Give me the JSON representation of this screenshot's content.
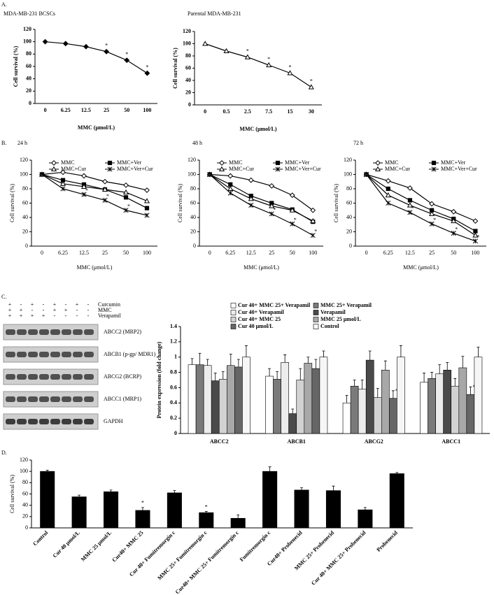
{
  "panel_labels": [
    "A.",
    "B.",
    "C.",
    "D."
  ],
  "blot": {
    "treatments": [
      {
        "name": "Curcumin",
        "signs": [
          "+",
          "-",
          "+",
          "-",
          "+",
          "-",
          "+",
          "-"
        ]
      },
      {
        "name": "MMC",
        "signs": [
          "+",
          "+",
          "-",
          "-",
          "+",
          "+",
          "-",
          "-"
        ]
      },
      {
        "name": "Verapamil",
        "signs": [
          "+",
          "+",
          "+",
          "+",
          "-",
          "-",
          "-",
          "-"
        ]
      }
    ],
    "bands": [
      "ABCC2 (MRP2)",
      "ABCB1 (p-gp/ MDR1)",
      "ABCG2 (BCRP)",
      "ABCC1 (MRP1)",
      "GAPDH"
    ]
  },
  "chart_data": [
    {
      "type": "line",
      "title": "MDA-MB-231 BCSCs",
      "xlabel": "MMC (μmol/L)",
      "ylabel": "Cell survival (%)",
      "categories": [
        "0",
        "6.25",
        "12.5",
        "25",
        "50",
        "100"
      ],
      "series": [
        {
          "color": "#000000",
          "marker": "diamond",
          "values": [
            100,
            97,
            92,
            84,
            70,
            49
          ],
          "annotations": [
            null,
            null,
            null,
            "*",
            "*",
            "*"
          ]
        }
      ],
      "ylim": [
        0,
        120
      ],
      "yticks": [
        0,
        20,
        40,
        60,
        80,
        100,
        120
      ]
    },
    {
      "type": "line",
      "title": "Parental MDA-MB-231",
      "xlabel": "MMC (μmol/L)",
      "ylabel": "Cell survival (%)",
      "categories": [
        "0",
        "0.5",
        "2.5",
        "7.5",
        "15",
        "30"
      ],
      "series": [
        {
          "color": "#000000",
          "marker": "open-triangle",
          "values": [
            100,
            88,
            78,
            65,
            52,
            29
          ],
          "annotations": [
            null,
            null,
            "*",
            "*",
            "*",
            "*"
          ]
        }
      ],
      "ylim": [
        0,
        120
      ],
      "yticks": [
        0,
        20,
        40,
        60,
        80,
        100,
        120
      ]
    },
    {
      "type": "line",
      "title": "24 h",
      "xlabel": "MMC (μmol/L)",
      "ylabel": "Cell survival (%)",
      "legend": "top",
      "categories": [
        "0",
        "6.25",
        "12.5",
        "25",
        "50",
        "100"
      ],
      "series": [
        {
          "name": "MMC",
          "color": "#000000",
          "marker": "open-diamond",
          "values": [
            100,
            103,
            98,
            90,
            85,
            78
          ]
        },
        {
          "name": "MMC+Ver",
          "color": "#000000",
          "marker": "square",
          "values": [
            100,
            92,
            86,
            79,
            68,
            53
          ]
        },
        {
          "name": "MMC+Cur",
          "color": "#000000",
          "marker": "open-triangle",
          "values": [
            100,
            87,
            83,
            79,
            75,
            63
          ]
        },
        {
          "name": "MMC+Ver+Cur",
          "color": "#000000",
          "marker": "cross",
          "values": [
            100,
            80,
            72,
            64,
            50,
            43
          ],
          "annotations": [
            null,
            null,
            "*",
            "*",
            "*",
            null
          ]
        }
      ],
      "ylim": [
        0,
        120
      ],
      "yticks": [
        0,
        20,
        40,
        60,
        80,
        100,
        120
      ]
    },
    {
      "type": "line",
      "title": "48 h",
      "xlabel": "MMC (μmol/L)",
      "ylabel": "Cell survival (%)",
      "legend": "top",
      "categories": [
        "0",
        "6.25",
        "12.5",
        "25",
        "50",
        "100"
      ],
      "series": [
        {
          "name": "MMC",
          "color": "#000000",
          "marker": "open-diamond",
          "values": [
            100,
            98,
            92,
            84,
            71,
            50
          ]
        },
        {
          "name": "MMC+Ver",
          "color": "#000000",
          "marker": "square",
          "values": [
            100,
            86,
            70,
            60,
            51,
            34
          ]
        },
        {
          "name": "MMC+Cur",
          "color": "#000000",
          "marker": "open-triangle",
          "values": [
            100,
            80,
            66,
            56,
            50,
            35
          ]
        },
        {
          "name": "MMC+Ver+Cur",
          "color": "#000000",
          "marker": "cross",
          "values": [
            100,
            74,
            57,
            45,
            31,
            15
          ],
          "annotations": [
            null,
            null,
            null,
            "*",
            "*",
            "*"
          ]
        }
      ],
      "ylim": [
        0,
        120
      ],
      "yticks": [
        0,
        20,
        40,
        60,
        80,
        100,
        120
      ]
    },
    {
      "type": "line",
      "title": "72 h",
      "xlabel": "MMC (μmol/L)",
      "ylabel": "Cell survival (%)",
      "legend": "top",
      "categories": [
        "0",
        "6.25",
        "12.5",
        "25",
        "50",
        "100"
      ],
      "series": [
        {
          "name": "MMC",
          "color": "#000000",
          "marker": "open-diamond",
          "values": [
            100,
            91,
            81,
            59,
            48,
            35
          ]
        },
        {
          "name": "MMC+Ver",
          "color": "#000000",
          "marker": "square",
          "values": [
            100,
            80,
            64,
            50,
            38,
            21
          ]
        },
        {
          "name": "MMC+Cur",
          "color": "#000000",
          "marker": "open-triangle",
          "values": [
            100,
            71,
            57,
            45,
            35,
            15
          ]
        },
        {
          "name": "MMC+Ver+Cur",
          "color": "#000000",
          "marker": "cross",
          "values": [
            100,
            60,
            47,
            31,
            18,
            7
          ],
          "annotations": [
            null,
            null,
            "*",
            "*",
            "*",
            "*"
          ]
        }
      ],
      "ylim": [
        0,
        120
      ],
      "yticks": [
        0,
        20,
        40,
        60,
        80,
        100,
        120
      ]
    },
    {
      "type": "bar",
      "ylabel": "Protein expression (fold change)",
      "legend": "top",
      "categories": [
        "ABCC2",
        "ABCB1",
        "ABCG2",
        "ABCC1"
      ],
      "series": [
        {
          "name": "Cur 40+ MMC 25+ Verapamil",
          "color": "#ffffff",
          "values": [
            0.9,
            0.75,
            0.4,
            0.67
          ],
          "errors": [
            0.08,
            0.1,
            0.1,
            0.12
          ]
        },
        {
          "name": "MMC 25+ Verapamil",
          "color": "#7a7a7a",
          "values": [
            0.9,
            0.71,
            0.62,
            0.72
          ],
          "errors": [
            0.15,
            0.1,
            0.08,
            0.08
          ]
        },
        {
          "name": "Cur 40+ Verapamil",
          "color": "#ececec",
          "values": [
            0.89,
            0.93,
            0.58,
            0.78
          ],
          "errors": [
            0.08,
            0.1,
            0.12,
            0.12
          ]
        },
        {
          "name": "Verapamil",
          "color": "#4a4a4a",
          "values": [
            0.69,
            0.26,
            0.96,
            0.83
          ],
          "errors": [
            0.1,
            0.06,
            0.12,
            0.1
          ]
        },
        {
          "name": "Cur 40+ MMC 25",
          "color": "#d2d2d2",
          "values": [
            0.71,
            0.7,
            0.47,
            0.62
          ],
          "errors": [
            0.1,
            0.15,
            0.12,
            0.1
          ]
        },
        {
          "name": "MMC 25  μmol/L",
          "color": "#a8a8a8",
          "values": [
            0.89,
            0.92,
            0.83,
            0.86
          ],
          "errors": [
            0.15,
            0.08,
            0.12,
            0.15
          ]
        },
        {
          "name": "Cur 40  μmol/L",
          "color": "#666666",
          "values": [
            0.87,
            0.85,
            0.46,
            0.51
          ],
          "errors": [
            0.1,
            0.12,
            0.1,
            0.1
          ],
          "annotations": [
            null,
            null,
            "*",
            "*"
          ]
        },
        {
          "name": "Control",
          "color": "#f6f6f6",
          "values": [
            1,
            1,
            1,
            1
          ],
          "errors": [
            0.15,
            0.08,
            0.15,
            0.13
          ]
        }
      ],
      "ylim": [
        0,
        1.4
      ],
      "yticks": [
        0,
        0.2,
        0.4,
        0.6,
        0.8,
        1,
        1.2,
        1.4
      ]
    },
    {
      "type": "bar",
      "ylabel": "Cell survival (%)",
      "categories": [
        "Control",
        "Cur 40  μmol/L",
        "MMC 25  μmol/L",
        "Cur40+ MMC 25",
        "Cur 40+ Fumitremorgin c",
        "MMC 25+ Fumitremorgin c",
        "Cur40+ MMC 25+ Fumitremorgin c",
        "Fumitremorgin c",
        "Cur40+ Probenecid",
        "MMC 25+ Probenecid",
        "Cur 40+ MMC 25+ Probenecid",
        "Probenecid"
      ],
      "series": [
        {
          "color": "#000000",
          "values": [
            100,
            55,
            64,
            31,
            62,
            27,
            17,
            100,
            67,
            66,
            32,
            96
          ],
          "errors": [
            2,
            3,
            3,
            5,
            4,
            2,
            6,
            8,
            4,
            8,
            4,
            2
          ],
          "annotations": [
            null,
            null,
            null,
            "*",
            null,
            "*",
            null,
            null,
            null,
            null,
            null,
            null
          ]
        }
      ],
      "ylim": [
        0,
        120
      ],
      "yticks": [
        0,
        20,
        40,
        60,
        80,
        100,
        120
      ]
    }
  ]
}
